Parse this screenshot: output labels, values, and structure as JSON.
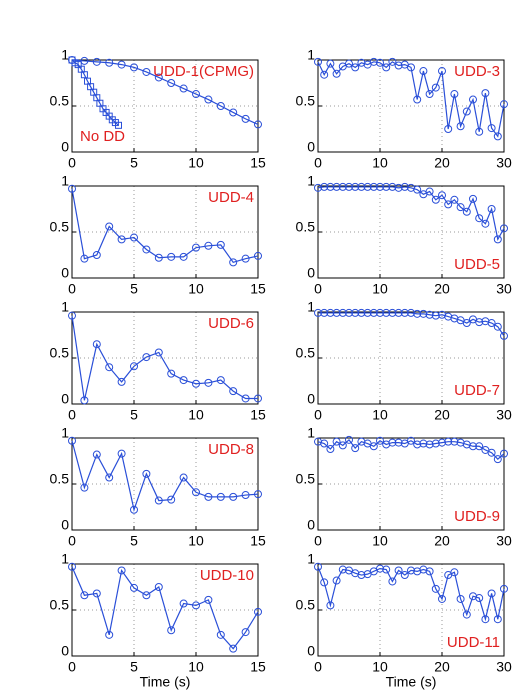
{
  "chart_data": [
    {
      "type": "line",
      "xlim": [
        0,
        15
      ],
      "ylim": [
        0,
        1
      ],
      "xticks": [
        0,
        5,
        10,
        15
      ],
      "yticks": [
        0,
        0.5,
        1
      ],
      "grid": true,
      "series": [
        {
          "name": "UDD-1(CPMG)",
          "color": "#2a4fd8",
          "marker": "circle",
          "label_corner": "top-right",
          "x": [
            0,
            1,
            2,
            3,
            4,
            5,
            6,
            7,
            8,
            9,
            10,
            11,
            12,
            13,
            14,
            15
          ],
          "values": [
            1,
            0.99,
            0.98,
            0.97,
            0.95,
            0.92,
            0.87,
            0.81,
            0.75,
            0.69,
            0.63,
            0.57,
            0.5,
            0.43,
            0.36,
            0.3
          ]
        },
        {
          "name": "No DD",
          "color": "#2a4fd8",
          "marker": "square",
          "label_corner": "bottom-left",
          "x": [
            0,
            0.25,
            0.5,
            0.75,
            1,
            1.25,
            1.5,
            1.75,
            2,
            2.25,
            2.5,
            2.75,
            3,
            3.25,
            3.5,
            3.75
          ],
          "values": [
            1,
            0.97,
            0.95,
            0.9,
            0.84,
            0.77,
            0.71,
            0.65,
            0.59,
            0.53,
            0.47,
            0.43,
            0.39,
            0.35,
            0.32,
            0.29
          ]
        }
      ]
    },
    {
      "type": "line",
      "xlim": [
        0,
        30
      ],
      "ylim": [
        0,
        1
      ],
      "xticks": [
        0,
        10,
        20,
        30
      ],
      "yticks": [
        0,
        0.5,
        1
      ],
      "grid": true,
      "series": [
        {
          "name": "UDD-3",
          "color": "#2a4fd8",
          "marker": "circle",
          "label_corner": "top-right",
          "x": [
            0,
            1,
            2,
            3,
            4,
            5,
            6,
            7,
            8,
            9,
            10,
            11,
            12,
            13,
            14,
            15,
            16,
            17,
            18,
            19,
            20,
            21,
            22,
            23,
            24,
            25,
            26,
            27,
            28,
            29,
            30
          ],
          "values": [
            0.98,
            0.84,
            0.96,
            0.85,
            0.93,
            0.96,
            0.92,
            0.97,
            0.95,
            0.98,
            0.97,
            0.92,
            0.98,
            0.94,
            0.95,
            0.92,
            0.57,
            0.88,
            0.63,
            0.7,
            0.88,
            0.25,
            0.63,
            0.28,
            0.44,
            0.57,
            0.22,
            0.64,
            0.26,
            0.17,
            0.52
          ]
        }
      ]
    },
    {
      "type": "line",
      "xlim": [
        0,
        15
      ],
      "ylim": [
        0,
        1
      ],
      "xticks": [
        0,
        5,
        10,
        15
      ],
      "yticks": [
        0,
        0.5,
        1
      ],
      "grid": true,
      "series": [
        {
          "name": "UDD-4",
          "color": "#2a4fd8",
          "marker": "circle",
          "label_corner": "top-right",
          "x": [
            0,
            1,
            2,
            3,
            4,
            5,
            6,
            7,
            8,
            9,
            10,
            11,
            12,
            13,
            14,
            15
          ],
          "values": [
            0.97,
            0.21,
            0.25,
            0.56,
            0.42,
            0.44,
            0.31,
            0.22,
            0.23,
            0.23,
            0.33,
            0.35,
            0.36,
            0.17,
            0.21,
            0.24
          ]
        }
      ]
    },
    {
      "type": "line",
      "xlim": [
        0,
        30
      ],
      "ylim": [
        0,
        1
      ],
      "xticks": [
        0,
        10,
        20,
        30
      ],
      "yticks": [
        0,
        0.5,
        1
      ],
      "grid": true,
      "series": [
        {
          "name": "UDD-5",
          "color": "#2a4fd8",
          "marker": "circle",
          "label_corner": "bottom-right",
          "x": [
            0,
            1,
            2,
            3,
            4,
            5,
            6,
            7,
            8,
            9,
            10,
            11,
            12,
            13,
            14,
            15,
            16,
            17,
            18,
            19,
            20,
            21,
            22,
            23,
            24,
            25,
            26,
            27,
            28,
            29,
            30
          ],
          "values": [
            0.98,
            0.99,
            0.99,
            0.99,
            0.99,
            0.99,
            0.99,
            0.99,
            0.99,
            0.99,
            0.99,
            0.99,
            0.99,
            0.98,
            0.99,
            0.98,
            0.96,
            0.91,
            0.94,
            0.85,
            0.9,
            0.8,
            0.85,
            0.77,
            0.72,
            0.86,
            0.65,
            0.59,
            0.75,
            0.42,
            0.54
          ]
        }
      ]
    },
    {
      "type": "line",
      "xlim": [
        0,
        15
      ],
      "ylim": [
        0,
        1
      ],
      "xticks": [
        0,
        5,
        10,
        15
      ],
      "yticks": [
        0,
        0.5,
        1
      ],
      "grid": true,
      "series": [
        {
          "name": "UDD-6",
          "color": "#2a4fd8",
          "marker": "circle",
          "label_corner": "top-right",
          "x": [
            0,
            1,
            2,
            3,
            4,
            5,
            6,
            7,
            8,
            9,
            10,
            11,
            12,
            13,
            14,
            15
          ],
          "values": [
            0.96,
            0.04,
            0.65,
            0.4,
            0.24,
            0.41,
            0.51,
            0.56,
            0.33,
            0.26,
            0.22,
            0.23,
            0.26,
            0.14,
            0.06,
            0.06
          ]
        }
      ]
    },
    {
      "type": "line",
      "xlim": [
        0,
        30
      ],
      "ylim": [
        0,
        1
      ],
      "xticks": [
        0,
        10,
        20,
        30
      ],
      "yticks": [
        0,
        0.5,
        1
      ],
      "grid": true,
      "series": [
        {
          "name": "UDD-7",
          "color": "#2a4fd8",
          "marker": "circle",
          "label_corner": "bottom-right",
          "x": [
            0,
            1,
            2,
            3,
            4,
            5,
            6,
            7,
            8,
            9,
            10,
            11,
            12,
            13,
            14,
            15,
            16,
            17,
            18,
            19,
            20,
            21,
            22,
            23,
            24,
            25,
            26,
            27,
            28,
            29,
            30
          ],
          "values": [
            0.99,
            0.99,
            0.99,
            0.99,
            0.99,
            0.99,
            0.99,
            0.99,
            0.99,
            0.99,
            0.99,
            0.99,
            0.99,
            0.99,
            0.99,
            0.99,
            0.98,
            0.98,
            0.97,
            0.96,
            0.97,
            0.95,
            0.93,
            0.91,
            0.88,
            0.92,
            0.89,
            0.9,
            0.88,
            0.84,
            0.74
          ]
        }
      ]
    },
    {
      "type": "line",
      "xlim": [
        0,
        15
      ],
      "ylim": [
        0,
        1
      ],
      "xticks": [
        0,
        5,
        10,
        15
      ],
      "yticks": [
        0,
        0.5,
        1
      ],
      "grid": true,
      "series": [
        {
          "name": "UDD-8",
          "color": "#2a4fd8",
          "marker": "circle",
          "label_corner": "top-right",
          "x": [
            0,
            1,
            2,
            3,
            4,
            5,
            6,
            7,
            8,
            9,
            10,
            11,
            12,
            13,
            14,
            15
          ],
          "values": [
            0.97,
            0.46,
            0.82,
            0.57,
            0.83,
            0.22,
            0.61,
            0.32,
            0.33,
            0.57,
            0.41,
            0.36,
            0.36,
            0.36,
            0.38,
            0.39
          ]
        }
      ]
    },
    {
      "type": "line",
      "xlim": [
        0,
        30
      ],
      "ylim": [
        0,
        1
      ],
      "xticks": [
        0,
        10,
        20,
        30
      ],
      "yticks": [
        0,
        0.5,
        1
      ],
      "grid": true,
      "series": [
        {
          "name": "UDD-9",
          "color": "#2a4fd8",
          "marker": "circle",
          "label_corner": "bottom-right",
          "x": [
            0,
            1,
            2,
            3,
            4,
            5,
            6,
            7,
            8,
            9,
            10,
            11,
            12,
            13,
            14,
            15,
            16,
            17,
            18,
            19,
            20,
            21,
            22,
            23,
            24,
            25,
            26,
            27,
            28,
            29,
            30
          ],
          "values": [
            0.96,
            0.94,
            0.88,
            0.96,
            0.92,
            0.98,
            0.89,
            0.96,
            0.94,
            0.91,
            0.97,
            0.93,
            0.95,
            0.95,
            0.94,
            0.97,
            0.93,
            0.94,
            0.93,
            0.94,
            0.95,
            0.96,
            0.96,
            0.95,
            0.93,
            0.91,
            0.91,
            0.87,
            0.84,
            0.77,
            0.83
          ]
        }
      ]
    },
    {
      "type": "line",
      "xlim": [
        0,
        15
      ],
      "ylim": [
        0,
        1
      ],
      "xticks": [
        0,
        5,
        10,
        15
      ],
      "yticks": [
        0,
        0.5,
        1
      ],
      "grid": true,
      "xlabel": "Time (s)",
      "series": [
        {
          "name": "UDD-10",
          "color": "#2a4fd8",
          "marker": "circle",
          "label_corner": "top-right",
          "x": [
            0,
            1,
            2,
            3,
            4,
            5,
            6,
            7,
            8,
            9,
            10,
            11,
            12,
            13,
            14,
            15
          ],
          "values": [
            0.97,
            0.66,
            0.68,
            0.23,
            0.93,
            0.74,
            0.66,
            0.75,
            0.28,
            0.57,
            0.55,
            0.61,
            0.23,
            0.08,
            0.26,
            0.48
          ]
        }
      ]
    },
    {
      "type": "line",
      "xlim": [
        0,
        30
      ],
      "ylim": [
        0,
        1
      ],
      "xticks": [
        0,
        10,
        20,
        30
      ],
      "yticks": [
        0,
        0.5,
        1
      ],
      "grid": true,
      "xlabel": "Time (s)",
      "series": [
        {
          "name": "UDD-11",
          "color": "#2a4fd8",
          "marker": "circle",
          "label_corner": "bottom-right",
          "x": [
            0,
            1,
            2,
            3,
            4,
            5,
            6,
            7,
            8,
            9,
            10,
            11,
            12,
            13,
            14,
            15,
            16,
            17,
            18,
            19,
            20,
            21,
            22,
            23,
            24,
            25,
            26,
            27,
            28,
            29,
            30
          ],
          "values": [
            0.97,
            0.8,
            0.55,
            0.82,
            0.94,
            0.93,
            0.9,
            0.88,
            0.89,
            0.92,
            0.95,
            0.94,
            0.81,
            0.93,
            0.88,
            0.93,
            0.92,
            0.94,
            0.92,
            0.73,
            0.62,
            0.88,
            0.91,
            0.62,
            0.45,
            0.65,
            0.63,
            0.4,
            0.68,
            0.4,
            0.73
          ]
        }
      ]
    }
  ]
}
